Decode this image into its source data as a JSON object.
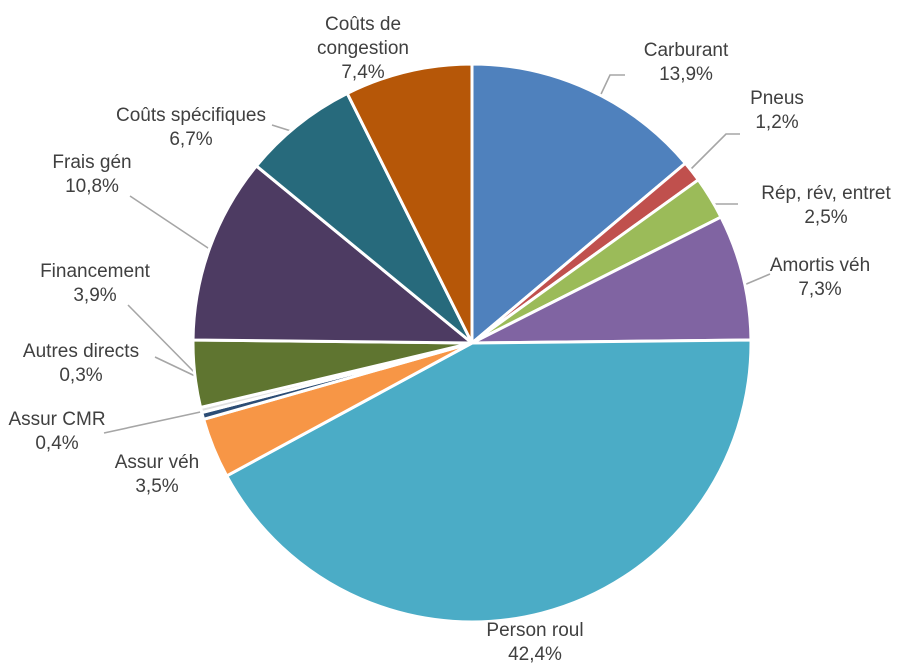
{
  "chart_data": {
    "type": "pie",
    "title": "",
    "slices": [
      {
        "label_lines": [
          "Carburant"
        ],
        "value": 13.9,
        "value_label": "13,9%",
        "color": "#4f81bd"
      },
      {
        "label_lines": [
          "Pneus"
        ],
        "value": 1.2,
        "value_label": "1,2%",
        "color": "#c0504d"
      },
      {
        "label_lines": [
          "Rép, rév, entret"
        ],
        "value": 2.5,
        "value_label": "2,5%",
        "color": "#9bbb59"
      },
      {
        "label_lines": [
          "Amortis véh"
        ],
        "value": 7.3,
        "value_label": "7,3%",
        "color": "#8064a2"
      },
      {
        "label_lines": [
          "Person roul"
        ],
        "value": 42.4,
        "value_label": "42,4%",
        "color": "#4bacc6"
      },
      {
        "label_lines": [
          "Assur véh"
        ],
        "value": 3.5,
        "value_label": "3,5%",
        "color": "#f79646"
      },
      {
        "label_lines": [
          "Assur CMR"
        ],
        "value": 0.4,
        "value_label": "0,4%",
        "color": "#2c4d75"
      },
      {
        "label_lines": [
          "Autres directs"
        ],
        "value": 0.3,
        "value_label": "0,3%",
        "color": "#e0e0e0"
      },
      {
        "label_lines": [
          "Financement"
        ],
        "value": 3.9,
        "value_label": "3,9%",
        "color": "#5f7530"
      },
      {
        "label_lines": [
          "Frais gén"
        ],
        "value": 10.8,
        "value_label": "10,8%",
        "color": "#4d3b62"
      },
      {
        "label_lines": [
          "Coûts spécifiques"
        ],
        "value": 6.7,
        "value_label": "6,7%",
        "color": "#276a7c"
      },
      {
        "label_lines": [
          "Coûts de",
          "congestion"
        ],
        "value": 7.4,
        "value_label": "7,4%",
        "color": "#b65708"
      }
    ]
  }
}
